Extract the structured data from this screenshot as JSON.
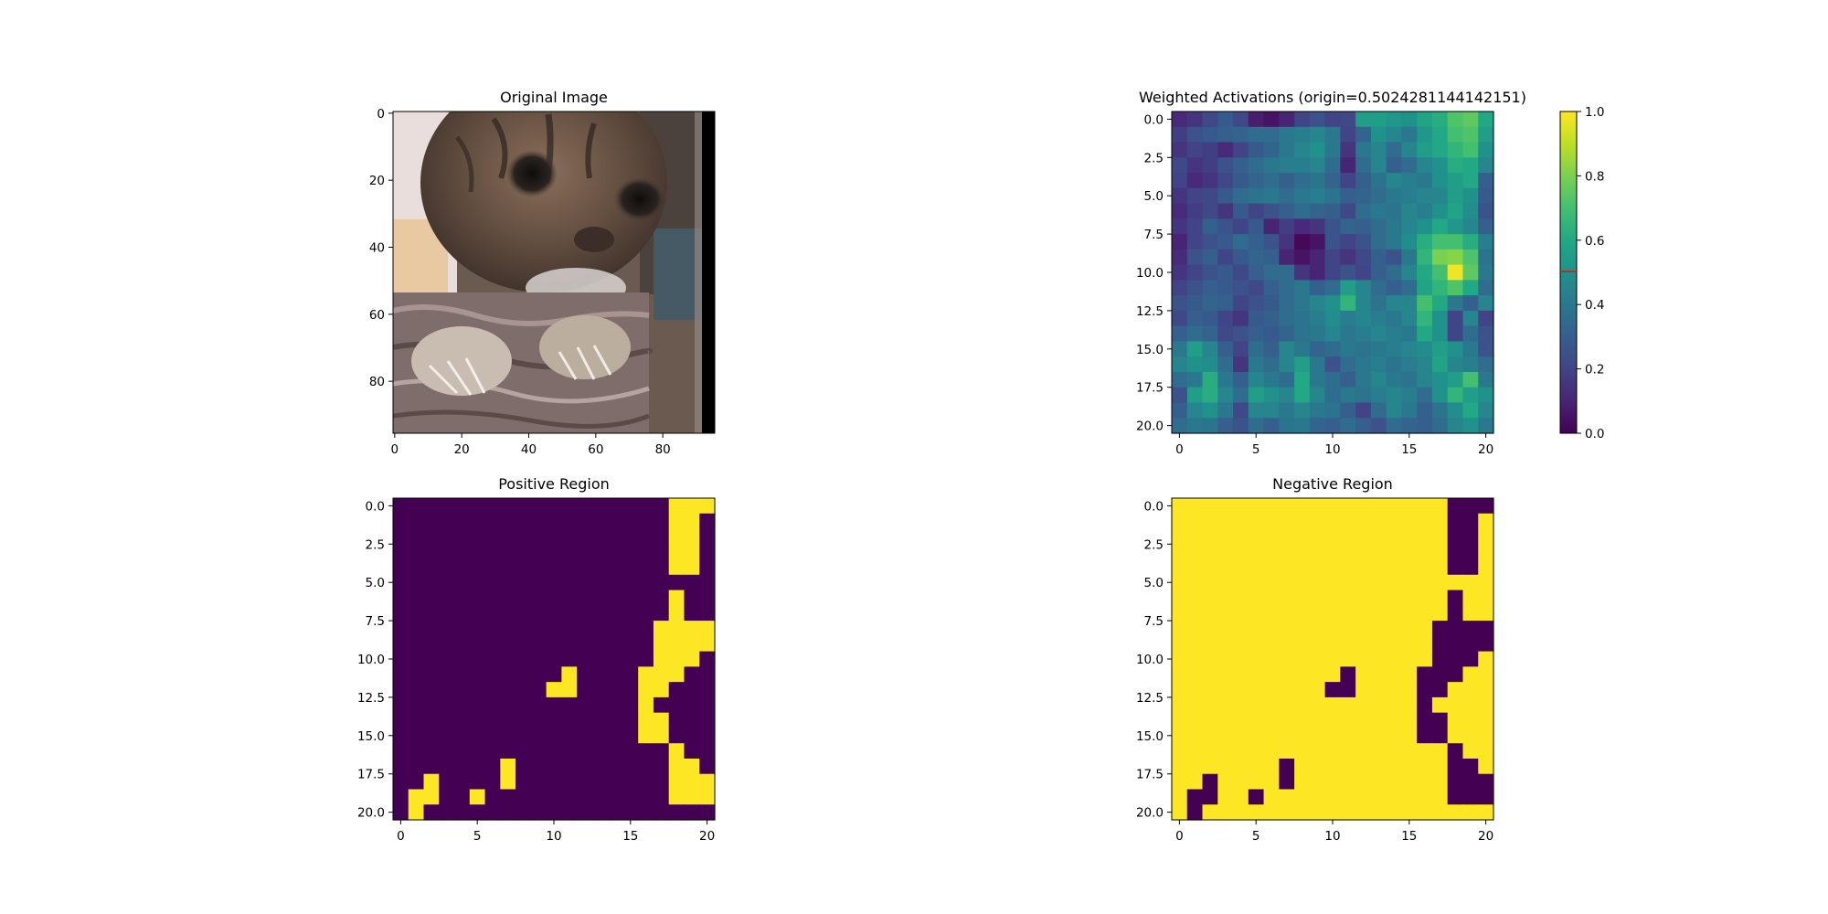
{
  "chart_data": [
    {
      "id": "original",
      "type": "heatmap",
      "title": "Original Image",
      "xticks": [
        0,
        20,
        40,
        60,
        80
      ],
      "yticks": [
        0,
        20,
        40,
        60,
        80
      ],
      "xlim": [
        0,
        96
      ],
      "ylim": [
        0,
        96
      ],
      "content": "photo-of-kitten"
    },
    {
      "id": "activations",
      "type": "heatmap",
      "title": "Weighted Activations (origin=0.5024281144142151)",
      "xticks": [
        0,
        5,
        10,
        15,
        20
      ],
      "yticks": [
        "0.0",
        "2.5",
        "5.0",
        "7.5",
        "10.0",
        "12.5",
        "15.0",
        "17.5",
        "20.0"
      ],
      "grid_size": [
        21,
        21
      ],
      "colormap": "viridis",
      "colorbar_ticks": [
        "0.0",
        "0.2",
        "0.4",
        "0.6",
        "0.8",
        "1.0"
      ],
      "colorbar_range": [
        0,
        1
      ],
      "origin_value": 0.5024281144142151,
      "origin_color": "#ff0000",
      "values": [
        [
          0.12,
          0.15,
          0.22,
          0.28,
          0.22,
          0.08,
          0.05,
          0.1,
          0.2,
          0.25,
          0.2,
          0.22,
          0.55,
          0.55,
          0.52,
          0.5,
          0.58,
          0.62,
          0.72,
          0.75,
          0.6
        ],
        [
          0.18,
          0.25,
          0.28,
          0.3,
          0.32,
          0.35,
          0.35,
          0.4,
          0.42,
          0.45,
          0.4,
          0.2,
          0.32,
          0.5,
          0.45,
          0.4,
          0.52,
          0.6,
          0.7,
          0.72,
          0.55
        ],
        [
          0.15,
          0.2,
          0.18,
          0.12,
          0.2,
          0.28,
          0.32,
          0.4,
          0.45,
          0.5,
          0.4,
          0.15,
          0.4,
          0.45,
          0.35,
          0.45,
          0.55,
          0.6,
          0.65,
          0.7,
          0.5
        ],
        [
          0.22,
          0.15,
          0.18,
          0.25,
          0.3,
          0.35,
          0.4,
          0.42,
          0.42,
          0.45,
          0.35,
          0.1,
          0.35,
          0.45,
          0.3,
          0.35,
          0.45,
          0.5,
          0.62,
          0.6,
          0.45
        ],
        [
          0.2,
          0.12,
          0.15,
          0.22,
          0.28,
          0.32,
          0.35,
          0.3,
          0.35,
          0.38,
          0.32,
          0.2,
          0.3,
          0.38,
          0.45,
          0.42,
          0.4,
          0.5,
          0.55,
          0.6,
          0.3
        ],
        [
          0.15,
          0.2,
          0.22,
          0.28,
          0.35,
          0.38,
          0.4,
          0.35,
          0.4,
          0.42,
          0.38,
          0.3,
          0.32,
          0.35,
          0.4,
          0.42,
          0.45,
          0.45,
          0.55,
          0.5,
          0.28
        ],
        [
          0.12,
          0.18,
          0.22,
          0.15,
          0.28,
          0.2,
          0.25,
          0.3,
          0.35,
          0.32,
          0.3,
          0.22,
          0.35,
          0.4,
          0.38,
          0.45,
          0.42,
          0.5,
          0.58,
          0.48,
          0.25
        ],
        [
          0.15,
          0.2,
          0.3,
          0.25,
          0.2,
          0.28,
          0.1,
          0.18,
          0.12,
          0.15,
          0.25,
          0.32,
          0.3,
          0.35,
          0.4,
          0.45,
          0.5,
          0.6,
          0.52,
          0.45,
          0.3
        ],
        [
          0.1,
          0.2,
          0.25,
          0.28,
          0.35,
          0.3,
          0.25,
          0.15,
          0.02,
          0.05,
          0.25,
          0.2,
          0.25,
          0.35,
          0.4,
          0.48,
          0.62,
          0.7,
          0.7,
          0.62,
          0.42
        ],
        [
          0.12,
          0.25,
          0.3,
          0.2,
          0.28,
          0.32,
          0.3,
          0.1,
          0.05,
          0.1,
          0.2,
          0.15,
          0.22,
          0.3,
          0.25,
          0.4,
          0.65,
          0.8,
          0.82,
          0.72,
          0.38
        ],
        [
          0.15,
          0.2,
          0.25,
          0.28,
          0.22,
          0.3,
          0.35,
          0.35,
          0.15,
          0.1,
          0.2,
          0.25,
          0.2,
          0.3,
          0.35,
          0.45,
          0.6,
          0.7,
          0.98,
          0.75,
          0.4
        ],
        [
          0.2,
          0.25,
          0.3,
          0.28,
          0.25,
          0.22,
          0.3,
          0.35,
          0.4,
          0.3,
          0.35,
          0.55,
          0.45,
          0.35,
          0.3,
          0.35,
          0.58,
          0.65,
          0.72,
          0.6,
          0.35
        ],
        [
          0.25,
          0.28,
          0.32,
          0.3,
          0.2,
          0.25,
          0.28,
          0.35,
          0.4,
          0.45,
          0.5,
          0.65,
          0.45,
          0.38,
          0.45,
          0.45,
          0.7,
          0.6,
          0.4,
          0.3,
          0.45
        ],
        [
          0.22,
          0.3,
          0.28,
          0.2,
          0.15,
          0.28,
          0.3,
          0.35,
          0.38,
          0.42,
          0.48,
          0.42,
          0.45,
          0.42,
          0.4,
          0.45,
          0.65,
          0.5,
          0.2,
          0.45,
          0.2
        ],
        [
          0.3,
          0.35,
          0.32,
          0.22,
          0.25,
          0.3,
          0.28,
          0.32,
          0.38,
          0.4,
          0.45,
          0.4,
          0.42,
          0.45,
          0.42,
          0.4,
          0.6,
          0.5,
          0.2,
          0.35,
          0.25
        ],
        [
          0.4,
          0.55,
          0.45,
          0.3,
          0.2,
          0.35,
          0.3,
          0.45,
          0.4,
          0.32,
          0.35,
          0.4,
          0.38,
          0.4,
          0.42,
          0.45,
          0.48,
          0.55,
          0.5,
          0.4,
          0.25
        ],
        [
          0.45,
          0.5,
          0.48,
          0.35,
          0.15,
          0.4,
          0.35,
          0.45,
          0.55,
          0.4,
          0.25,
          0.35,
          0.4,
          0.42,
          0.38,
          0.42,
          0.45,
          0.58,
          0.45,
          0.42,
          0.35
        ],
        [
          0.35,
          0.4,
          0.62,
          0.4,
          0.3,
          0.45,
          0.4,
          0.35,
          0.6,
          0.4,
          0.35,
          0.3,
          0.4,
          0.45,
          0.4,
          0.38,
          0.45,
          0.5,
          0.55,
          0.7,
          0.4
        ],
        [
          0.25,
          0.55,
          0.62,
          0.45,
          0.35,
          0.55,
          0.5,
          0.45,
          0.6,
          0.45,
          0.35,
          0.4,
          0.38,
          0.42,
          0.45,
          0.42,
          0.35,
          0.5,
          0.65,
          0.55,
          0.5
        ],
        [
          0.3,
          0.45,
          0.5,
          0.4,
          0.22,
          0.45,
          0.45,
          0.4,
          0.45,
          0.4,
          0.38,
          0.3,
          0.2,
          0.35,
          0.45,
          0.4,
          0.3,
          0.38,
          0.48,
          0.6,
          0.45
        ],
        [
          0.35,
          0.4,
          0.38,
          0.3,
          0.25,
          0.35,
          0.3,
          0.38,
          0.4,
          0.32,
          0.3,
          0.35,
          0.3,
          0.25,
          0.35,
          0.32,
          0.3,
          0.35,
          0.45,
          0.5,
          0.4
        ]
      ]
    },
    {
      "id": "positive",
      "type": "heatmap",
      "title": "Positive Region",
      "xticks": [
        0,
        5,
        10,
        15,
        20
      ],
      "yticks": [
        "0.0",
        "2.5",
        "5.0",
        "7.5",
        "10.0",
        "12.5",
        "15.0",
        "17.5",
        "20.0"
      ],
      "grid_size": [
        21,
        21
      ],
      "colormap": "viridis",
      "mask": [
        "000000000000000000111",
        "000000000000000000110",
        "000000000000000000110",
        "000000000000000000110",
        "000000000000000000110",
        "000000000000000000000",
        "000000000000000000100",
        "000000000000000000100",
        "000000000000000001111",
        "000000000000000001111",
        "000000000000000001110",
        "000000000001000011100",
        "000000000011000011000",
        "000000000000000010000",
        "000000000000000011000",
        "000000000000000011000",
        "000000000000000000100",
        "000000010000000000110",
        "001000010000000000111",
        "011001000000000000111",
        "010000000000000000000"
      ]
    },
    {
      "id": "negative",
      "type": "heatmap",
      "title": "Negative Region",
      "xticks": [
        0,
        5,
        10,
        15,
        20
      ],
      "yticks": [
        "0.0",
        "2.5",
        "5.0",
        "7.5",
        "10.0",
        "12.5",
        "15.0",
        "17.5",
        "20.0"
      ],
      "grid_size": [
        21,
        21
      ],
      "colormap": "viridis",
      "mask_is_inverse_of": "positive"
    }
  ]
}
